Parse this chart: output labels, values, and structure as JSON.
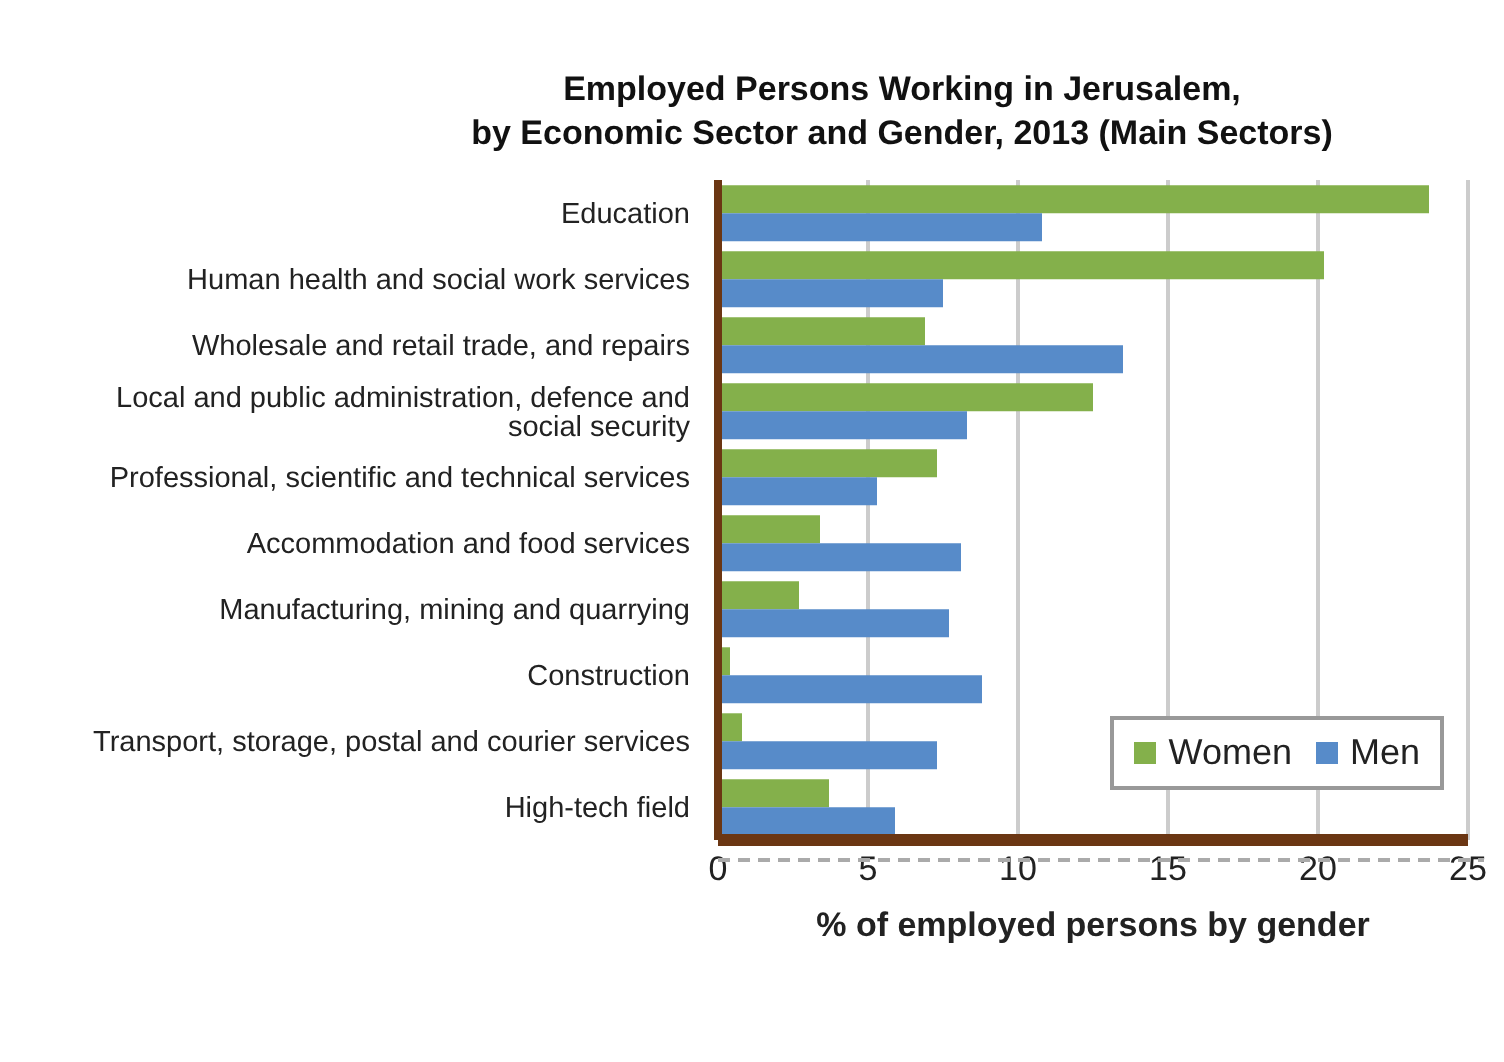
{
  "chart_data": {
    "type": "bar",
    "orientation": "horizontal",
    "title": "Employed Persons Working in Jerusalem,\nby Economic Sector and Gender, 2013 (Main Sectors)",
    "xlabel": "% of employed persons by gender",
    "categories": [
      "Education",
      "Human health and social work services",
      "Wholesale and retail trade, and repairs",
      "Local and public administration, defence and social security",
      "Professional, scientific and technical services",
      "Accommodation and food services",
      "Manufacturing, mining and quarrying",
      "Construction",
      "Transport, storage, postal and courier services",
      "High-tech field"
    ],
    "series": [
      {
        "name": "Women",
        "color": "#84b04b",
        "values": [
          23.7,
          20.2,
          6.9,
          12.5,
          7.3,
          3.4,
          2.7,
          0.4,
          0.8,
          3.7
        ]
      },
      {
        "name": "Men",
        "color": "#578bc9",
        "values": [
          10.8,
          7.5,
          13.5,
          8.3,
          5.3,
          8.1,
          7.7,
          8.8,
          7.3,
          5.9
        ]
      }
    ],
    "xlim": [
      0,
      25
    ],
    "xticks": [
      0,
      5,
      10,
      15,
      20,
      25
    ],
    "grid": "x",
    "legend": "bottom right"
  }
}
